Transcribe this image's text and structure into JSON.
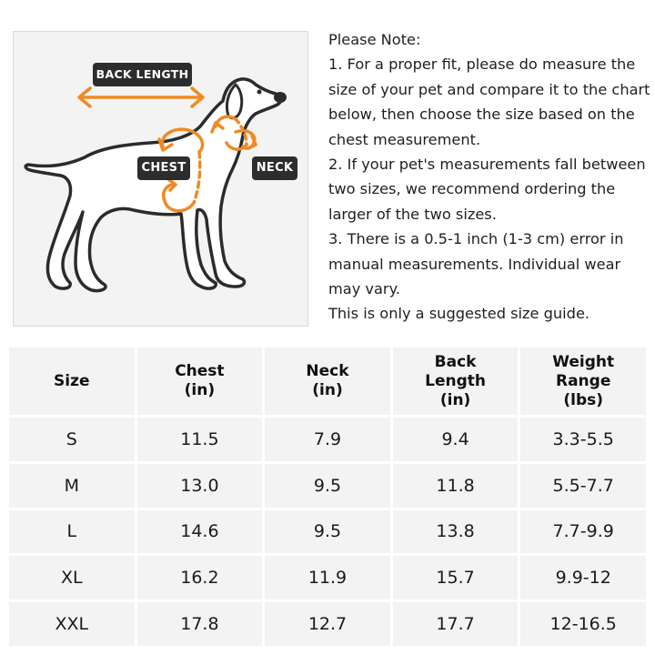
{
  "diagram": {
    "labels": {
      "back_length": "BACK LENGTH",
      "chest": "CHEST",
      "neck": "NECK"
    },
    "accent_color": "#f08a24",
    "tag_color": "#2d2d2d"
  },
  "notes": [
    "Please Note:",
    "1. For a proper fit, please do measure the",
    "size of your pet and compare it to the chart",
    "below, then choose the size based on the",
    "chest measurement.",
    "2. If your pet's measurements fall between",
    "two sizes, we recommend ordering the",
    "larger of the two sizes.",
    "3. There is a 0.5-1 inch (1-3 cm) error in",
    "manual measurements. Individual wear",
    "may vary.",
    "This is only a suggested size guide."
  ],
  "table": {
    "headers": [
      [
        "Size"
      ],
      [
        "Chest",
        "(in)"
      ],
      [
        "Neck",
        "(in)"
      ],
      [
        "Back",
        "Length",
        "(in)"
      ],
      [
        "Weight",
        "Range",
        "(lbs)"
      ]
    ],
    "rows": [
      [
        "S",
        "11.5",
        "7.9",
        "9.4",
        "3.3-5.5"
      ],
      [
        "M",
        "13.0",
        "9.5",
        "11.8",
        "5.5-7.7"
      ],
      [
        "L",
        "14.6",
        "9.5",
        "13.8",
        "7.7-9.9"
      ],
      [
        "XL",
        "16.2",
        "11.9",
        "15.7",
        "9.9-12"
      ],
      [
        "XXL",
        "17.8",
        "12.7",
        "17.7",
        "12-16.5"
      ]
    ]
  }
}
